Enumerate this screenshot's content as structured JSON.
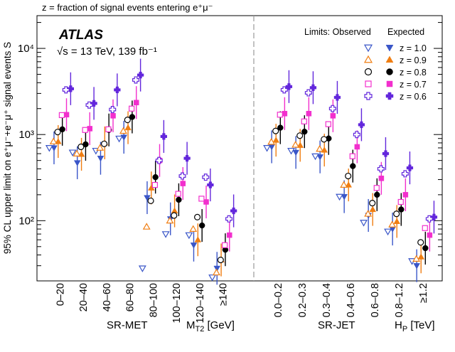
{
  "chart_data": {
    "type": "scatter",
    "subtitle": "z = fraction of signal events entering e⁺μ⁻",
    "experiment": "ATLAS",
    "energy_label": "√s = 13 TeV, 139 fb⁻¹",
    "ylabel": "95% CL upper limit on e⁺μ⁻+e⁻μ⁺ signal events S",
    "yscale": "log",
    "ylim": [
      20,
      24000
    ],
    "y_ticks": [
      {
        "value": 100,
        "label": "10²"
      },
      {
        "value": 1000,
        "label": "10³"
      },
      {
        "value": 10000,
        "label": "10⁴"
      }
    ],
    "legend": {
      "header_observed": "Limits: Observed",
      "header_expected": "Expected",
      "placement": "top-right"
    },
    "regions": [
      {
        "name": "SR-MET",
        "var_label": "M",
        "var_sub": "T2",
        "var_unit": " [GeV]",
        "bins": [
          "0–20",
          "20–40",
          "40–60",
          "60–80",
          "80–100",
          "100–120",
          "120–140",
          "≥140"
        ]
      },
      {
        "name": "SR-JET",
        "var_label": "H",
        "var_sub": "P",
        "var_unit": " [TeV]",
        "bins": [
          "0.0–0.2",
          "0.2–0.3",
          "0.3–0.4",
          "0.4–0.6",
          "0.6–0.8",
          "0.8–1.2",
          "≥1.2"
        ]
      }
    ],
    "series": [
      {
        "name": "z = 1.0",
        "color": "#3a56c8",
        "marker": "tri-down",
        "observed": [
          700,
          620,
          650,
          900,
          28,
          70,
          68,
          22,
          700,
          650,
          560,
          190,
          95,
          75,
          34
        ],
        "expected": [
          700,
          470,
          530,
          930,
          185,
          105,
          52,
          28,
          720,
          620,
          550,
          190,
          115,
          80,
          30
        ]
      },
      {
        "name": "z = 0.9",
        "color": "#f07e12",
        "marker": "tri-up",
        "observed": [
          830,
          600,
          700,
          1100,
          85,
          100,
          80,
          25,
          820,
          760,
          680,
          260,
          120,
          90,
          36
        ],
        "expected": [
          830,
          590,
          800,
          1200,
          240,
          130,
          60,
          35,
          860,
          750,
          660,
          260,
          135,
          98,
          38
        ]
      },
      {
        "name": "z = 0.8",
        "color": "#000000",
        "marker": "circle",
        "observed": [
          1070,
          720,
          780,
          1480,
          170,
          115,
          110,
          35,
          1100,
          970,
          880,
          330,
          160,
          120,
          56
        ],
        "expected": [
          1150,
          770,
          1130,
          1600,
          320,
          175,
          88,
          46,
          1200,
          1080,
          900,
          430,
          200,
          135,
          48
        ]
      },
      {
        "name": "z = 0.7",
        "color": "#f22fcd",
        "marker": "square",
        "observed": [
          1680,
          1130,
          1150,
          2000,
          260,
          205,
          180,
          52,
          1700,
          1420,
          1320,
          560,
          240,
          165,
          82
        ],
        "expected": [
          1700,
          1170,
          1650,
          2350,
          500,
          270,
          165,
          68,
          1750,
          1750,
          1650,
          720,
          310,
          200,
          68
        ]
      },
      {
        "name": "z = 0.6",
        "color": "#6226dc",
        "marker": "plus",
        "observed": [
          3300,
          2200,
          1950,
          4300,
          500,
          330,
          320,
          105,
          3300,
          3050,
          2000,
          1000,
          400,
          350,
          105
        ],
        "expected": [
          3400,
          2300,
          3300,
          4900,
          950,
          530,
          260,
          130,
          3600,
          3500,
          2700,
          1300,
          600,
          410,
          110
        ]
      }
    ]
  }
}
